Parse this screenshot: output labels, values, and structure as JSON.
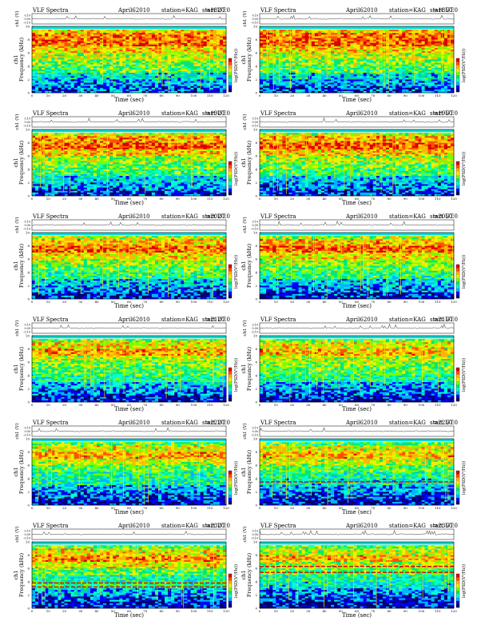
{
  "chart_data": {
    "type": "heatmap",
    "layout": {
      "rows": 6,
      "cols": 2
    },
    "common": {
      "title_left": "VLF Spectra",
      "date": "April62010",
      "station": "station=KAG",
      "start_label": "start  UT",
      "waveform_ylabel": "ch1 (V)",
      "waveform_yticks": [
        "0.10",
        "0.00",
        "-0.10"
      ],
      "waveform_ylim": [
        -0.1,
        0.1
      ],
      "spectro_ylabel_channel": "ch1",
      "spectro_ylabel": "Frequency (kHz)",
      "y_ticks": [
        0,
        2,
        4,
        6,
        8,
        10
      ],
      "ylim": [
        0,
        10
      ],
      "xlabel": "Time (sec)",
      "x_ticks": [
        0,
        10,
        20,
        30,
        40,
        50,
        60,
        70,
        80,
        90,
        100,
        110,
        120
      ],
      "xlim": [
        0,
        120
      ],
      "colorbar_label": "log(PSD(V²/Hz))",
      "colorscale": [
        "#00006e",
        "#0000ff",
        "#00b4ff",
        "#00ffd2",
        "#00e678",
        "#78ff00",
        "#f0f000",
        "#ffb400",
        "#ff5000",
        "#dc0000"
      ]
    },
    "panels": [
      {
        "start_ut": "=1820:0",
        "intensity": [
          0.18,
          0.26,
          0.34,
          0.48,
          0.55,
          0.62,
          0.7,
          0.84,
          0.8,
          0.7,
          0.1
        ],
        "lines": []
      },
      {
        "start_ut": "=1850:0",
        "intensity": [
          0.18,
          0.26,
          0.34,
          0.48,
          0.55,
          0.62,
          0.7,
          0.84,
          0.82,
          0.72,
          0.1
        ],
        "lines": []
      },
      {
        "start_ut": "=1920:0",
        "intensity": [
          0.16,
          0.24,
          0.32,
          0.46,
          0.52,
          0.6,
          0.72,
          0.86,
          0.76,
          0.62,
          0.1
        ],
        "lines": []
      },
      {
        "start_ut": "=1950:0",
        "intensity": [
          0.16,
          0.24,
          0.32,
          0.46,
          0.52,
          0.6,
          0.72,
          0.86,
          0.76,
          0.62,
          0.1
        ],
        "lines": []
      },
      {
        "start_ut": "=2020:0",
        "intensity": [
          0.14,
          0.22,
          0.3,
          0.44,
          0.5,
          0.58,
          0.68,
          0.84,
          0.74,
          0.6,
          0.1
        ],
        "lines": []
      },
      {
        "start_ut": "=2050:0",
        "intensity": [
          0.14,
          0.22,
          0.3,
          0.44,
          0.5,
          0.58,
          0.68,
          0.84,
          0.74,
          0.6,
          0.1
        ],
        "lines": []
      },
      {
        "start_ut": "=2120:0",
        "intensity": [
          0.12,
          0.2,
          0.28,
          0.42,
          0.48,
          0.54,
          0.62,
          0.76,
          0.68,
          0.56,
          0.1
        ],
        "lines": []
      },
      {
        "start_ut": "=2150:0",
        "intensity": [
          0.12,
          0.2,
          0.28,
          0.42,
          0.48,
          0.54,
          0.62,
          0.74,
          0.66,
          0.54,
          0.1
        ],
        "lines": []
      },
      {
        "start_ut": "=2220:0",
        "intensity": [
          0.12,
          0.18,
          0.26,
          0.38,
          0.42,
          0.5,
          0.62,
          0.76,
          0.66,
          0.52,
          0.1
        ],
        "lines": []
      },
      {
        "start_ut": "=2250:0",
        "intensity": [
          0.12,
          0.18,
          0.26,
          0.36,
          0.42,
          0.5,
          0.62,
          0.74,
          0.64,
          0.5,
          0.1
        ],
        "lines": [
          3.5
        ]
      },
      {
        "start_ut": "=2320:0",
        "intensity": [
          0.12,
          0.18,
          0.26,
          0.44,
          0.4,
          0.52,
          0.68,
          0.78,
          0.66,
          0.52,
          0.1
        ],
        "lines": [
          3.2,
          3.8
        ]
      },
      {
        "start_ut": "=2350:0",
        "intensity": [
          0.1,
          0.16,
          0.24,
          0.36,
          0.4,
          0.48,
          0.6,
          0.74,
          0.62,
          0.5,
          0.1
        ],
        "lines": [
          6.3,
          5.4
        ]
      }
    ]
  }
}
